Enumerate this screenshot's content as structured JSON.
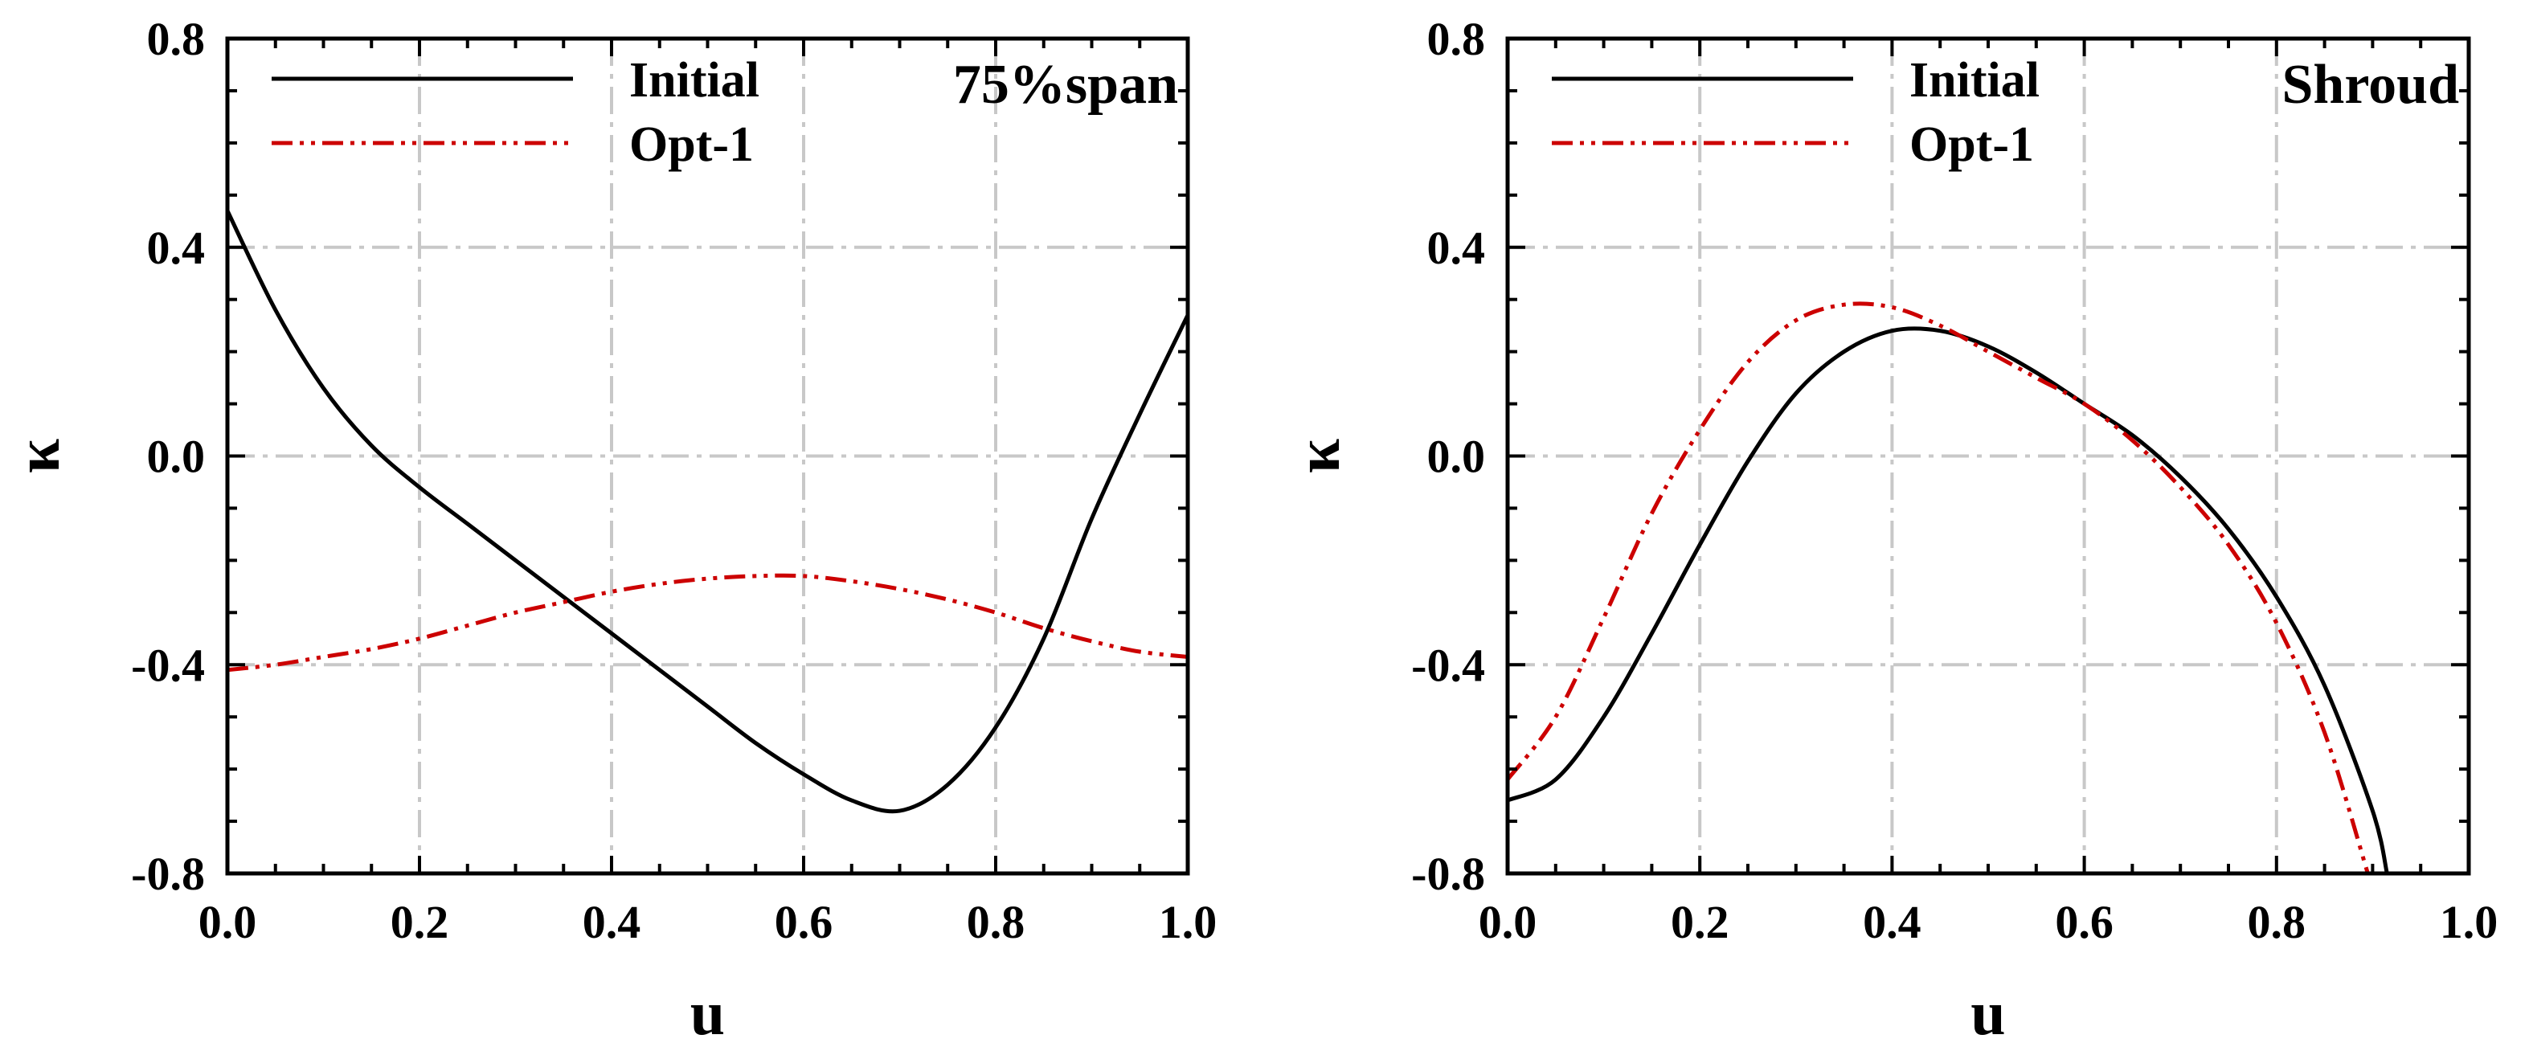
{
  "chart_data": [
    {
      "type": "line",
      "title": "75%span",
      "xlabel": "u",
      "ylabel": "κ",
      "xlim": [
        0.0,
        1.0
      ],
      "ylim": [
        -0.8,
        0.8
      ],
      "xticks": [
        "0.0",
        "0.2",
        "0.4",
        "0.6",
        "0.8",
        "1.0"
      ],
      "yticks": [
        "0.8",
        "0.4",
        "0.0",
        "-0.4",
        "-0.8"
      ],
      "grid": true,
      "legend_position": "top-left",
      "series": [
        {
          "name": "Initial",
          "color": "#000000",
          "style": "solid",
          "x": [
            0.0,
            0.05,
            0.1,
            0.15,
            0.2,
            0.25,
            0.3,
            0.35,
            0.4,
            0.45,
            0.5,
            0.55,
            0.6,
            0.65,
            0.7,
            0.75,
            0.8,
            0.85,
            0.9,
            0.95,
            1.0
          ],
          "y": [
            0.47,
            0.28,
            0.13,
            0.02,
            -0.06,
            -0.13,
            -0.2,
            -0.27,
            -0.34,
            -0.41,
            -0.48,
            -0.55,
            -0.61,
            -0.66,
            -0.68,
            -0.63,
            -0.52,
            -0.35,
            -0.12,
            0.08,
            0.27
          ]
        },
        {
          "name": "Opt-1",
          "color": "#cc0000",
          "style": "dash-dot-dot",
          "x": [
            0.0,
            0.05,
            0.1,
            0.15,
            0.2,
            0.25,
            0.3,
            0.35,
            0.4,
            0.45,
            0.5,
            0.55,
            0.6,
            0.65,
            0.7,
            0.75,
            0.8,
            0.85,
            0.9,
            0.95,
            1.0
          ],
          "y": [
            -0.41,
            -0.4,
            -0.385,
            -0.37,
            -0.35,
            -0.325,
            -0.3,
            -0.28,
            -0.26,
            -0.245,
            -0.235,
            -0.23,
            -0.23,
            -0.24,
            -0.255,
            -0.275,
            -0.3,
            -0.33,
            -0.355,
            -0.375,
            -0.385
          ]
        }
      ]
    },
    {
      "type": "line",
      "title": "Shroud",
      "xlabel": "u",
      "ylabel": "κ",
      "xlim": [
        0.0,
        1.0
      ],
      "ylim": [
        -0.8,
        0.8
      ],
      "xticks": [
        "0.0",
        "0.2",
        "0.4",
        "0.6",
        "0.8",
        "1.0"
      ],
      "yticks": [
        "0.8",
        "0.4",
        "0.0",
        "-0.4",
        "-0.8"
      ],
      "grid": true,
      "legend_position": "top-left",
      "series": [
        {
          "name": "Initial",
          "color": "#000000",
          "style": "solid",
          "x": [
            0.0,
            0.05,
            0.1,
            0.15,
            0.2,
            0.25,
            0.3,
            0.35,
            0.4,
            0.45,
            0.5,
            0.55,
            0.6,
            0.65,
            0.7,
            0.75,
            0.8,
            0.85,
            0.9,
            0.915
          ],
          "y": [
            -0.66,
            -0.62,
            -0.5,
            -0.34,
            -0.17,
            -0.01,
            0.12,
            0.2,
            0.24,
            0.24,
            0.21,
            0.16,
            0.1,
            0.04,
            -0.04,
            -0.14,
            -0.27,
            -0.44,
            -0.68,
            -0.8
          ]
        },
        {
          "name": "Opt-1",
          "color": "#cc0000",
          "style": "dash-dot-dot",
          "x": [
            0.0,
            0.05,
            0.1,
            0.15,
            0.2,
            0.25,
            0.3,
            0.35,
            0.4,
            0.45,
            0.5,
            0.55,
            0.6,
            0.65,
            0.7,
            0.75,
            0.8,
            0.85,
            0.895
          ],
          "y": [
            -0.62,
            -0.5,
            -0.31,
            -0.11,
            0.05,
            0.18,
            0.26,
            0.29,
            0.285,
            0.25,
            0.2,
            0.15,
            0.1,
            0.03,
            -0.06,
            -0.17,
            -0.32,
            -0.53,
            -0.8
          ]
        }
      ]
    }
  ]
}
